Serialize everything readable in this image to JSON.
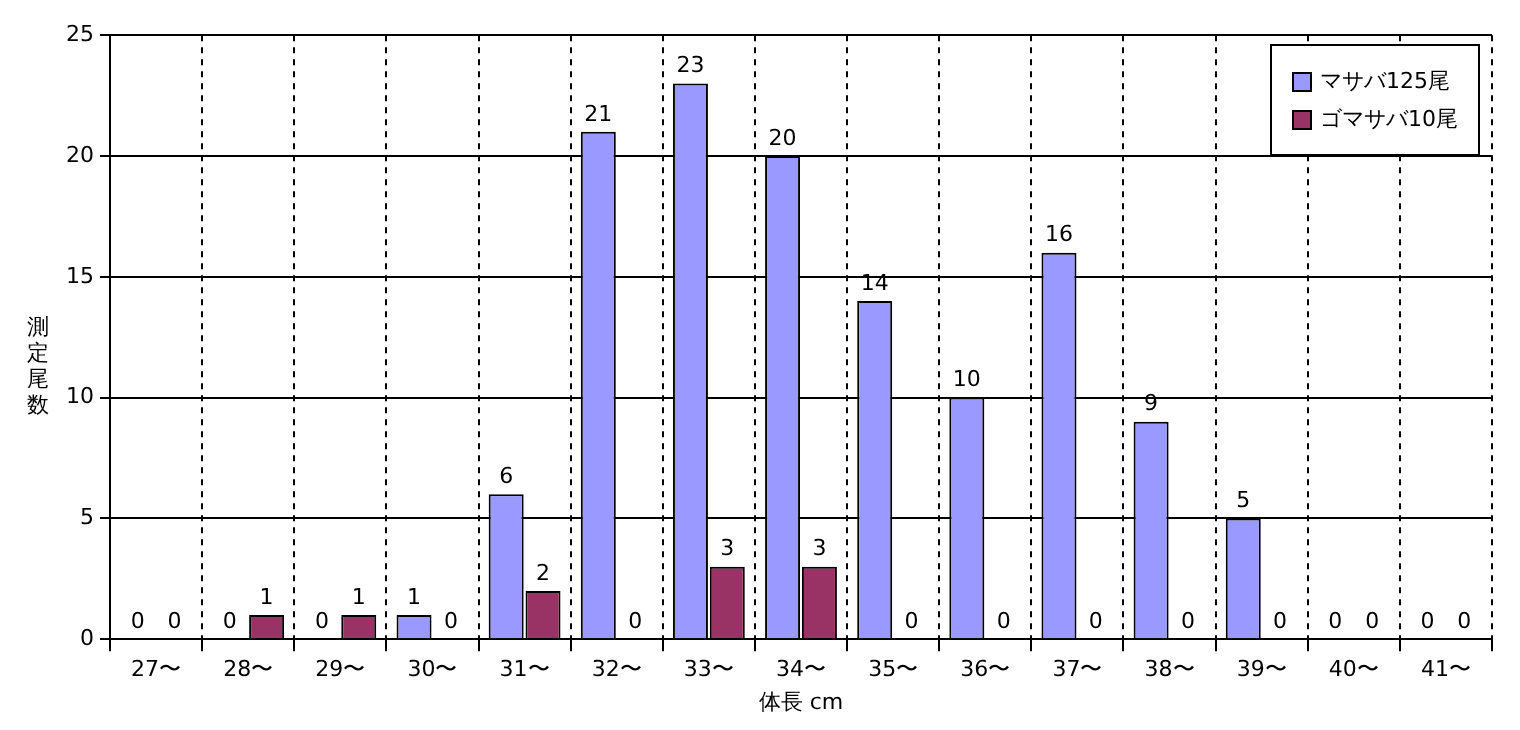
{
  "chart_data": {
    "type": "bar",
    "xlabel": "体長 cm",
    "ylabel": "測定尾数",
    "categories": [
      "27〜",
      "28〜",
      "29〜",
      "30〜",
      "31〜",
      "32〜",
      "33〜",
      "34〜",
      "35〜",
      "36〜",
      "37〜",
      "38〜",
      "39〜",
      "40〜",
      "41〜"
    ],
    "series": [
      {
        "name": "マサバ125尾",
        "color": "#9999ff",
        "values": [
          0,
          0,
          0,
          1,
          6,
          21,
          23,
          20,
          14,
          10,
          16,
          9,
          5,
          0,
          0
        ]
      },
      {
        "name": "ゴマサバ10尾",
        "color": "#993366",
        "values": [
          0,
          1,
          1,
          0,
          2,
          0,
          3,
          3,
          0,
          0,
          0,
          0,
          0,
          0,
          0
        ]
      }
    ],
    "ylim": [
      0,
      25
    ],
    "yticks": [
      0,
      5,
      10,
      15,
      20,
      25
    ],
    "grid": true,
    "legend": "top right",
    "data_labels": true
  }
}
